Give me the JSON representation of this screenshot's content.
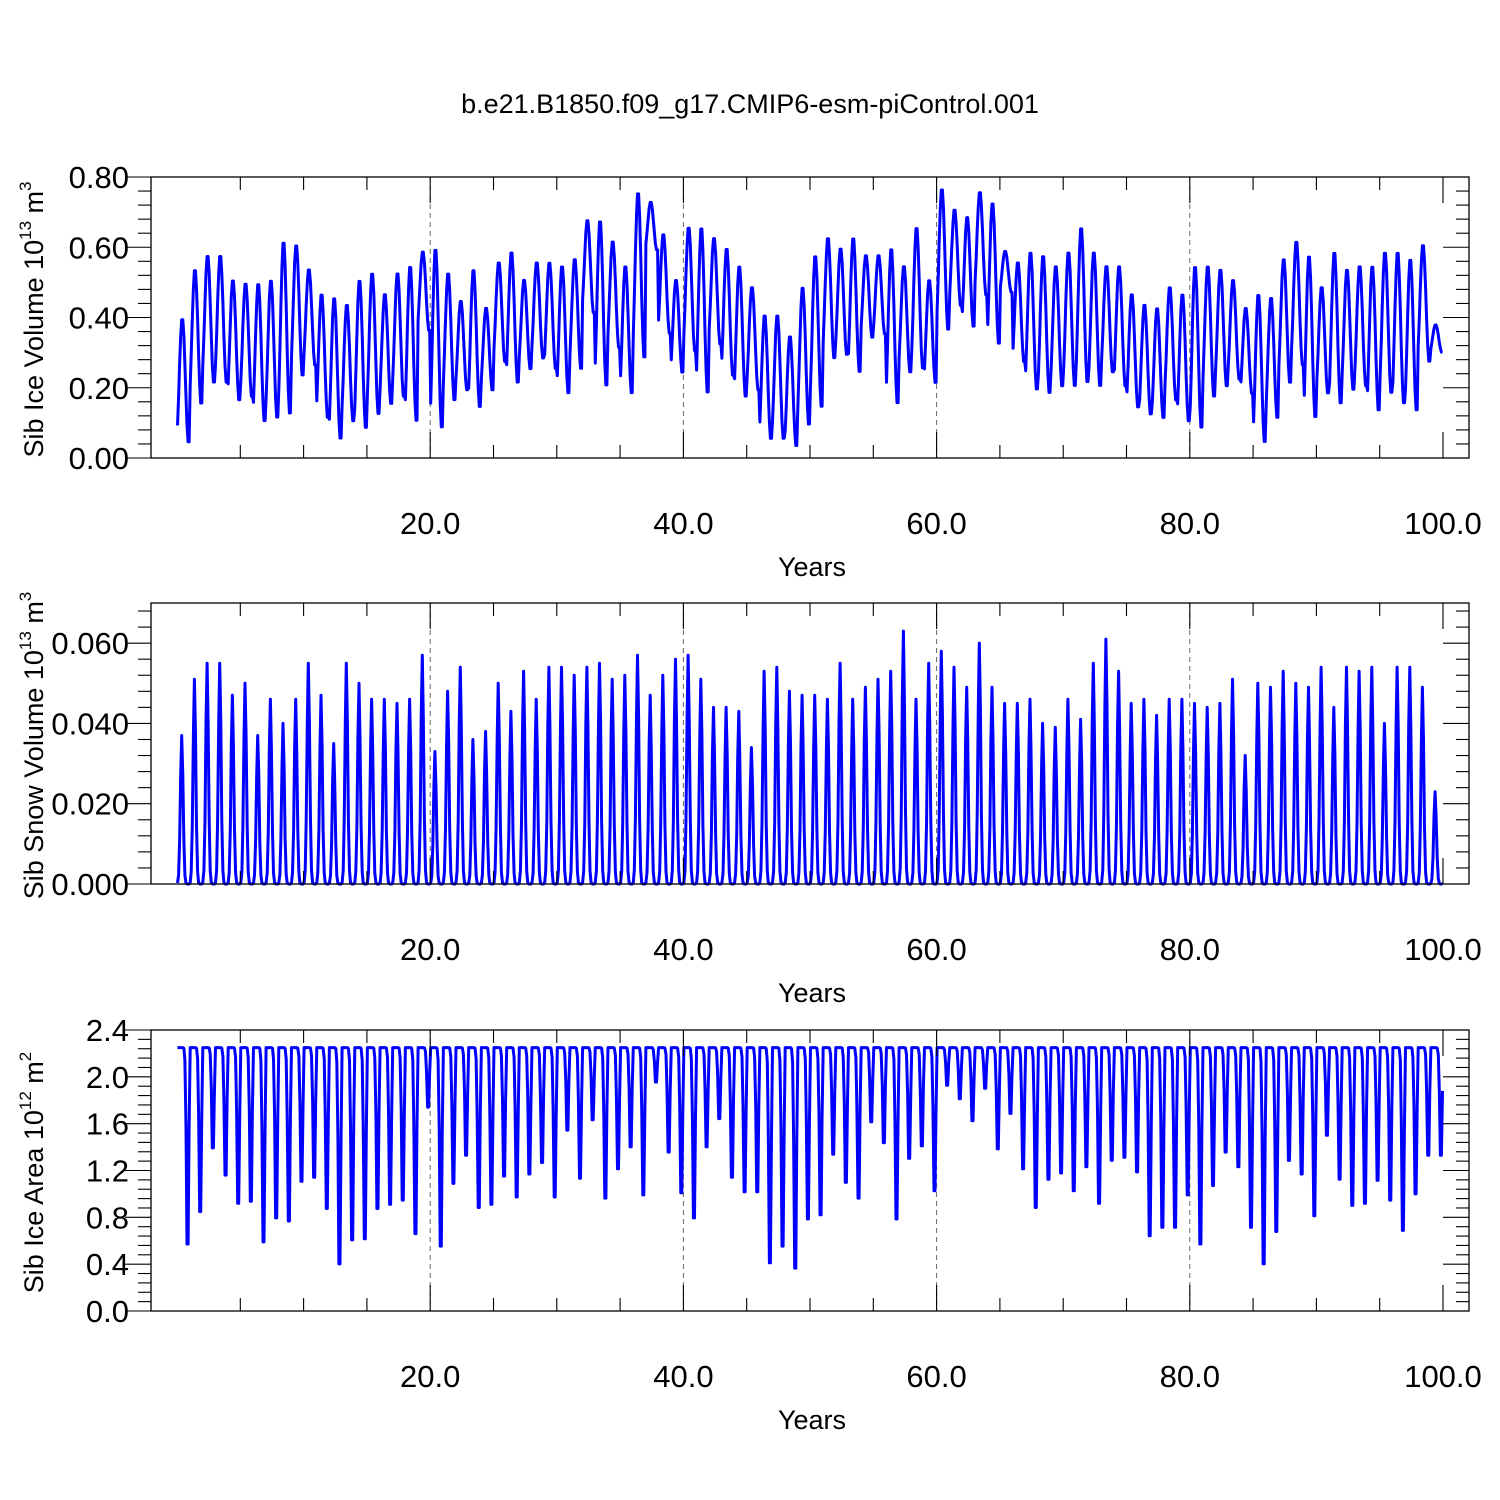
{
  "figure_title": "b.e21.B1850.f09_g17.CMIP6-esm-piControl.001",
  "chart_data": [
    {
      "type": "line",
      "title": "",
      "xlabel": "Years",
      "ylabel": "Sib Ice Volume 10",
      "ylabel_exp": "13",
      "ylabel_unit": " m",
      "ylabel_unit_exp": "3",
      "xlim": [
        0,
        100
      ],
      "ylim": [
        0.0,
        0.8
      ],
      "x_ticks": [
        20,
        40,
        60,
        80,
        100
      ],
      "x_tick_labels": [
        "20.0",
        "40.0",
        "60.0",
        "80.0",
        "100.0"
      ],
      "y_ticks": [
        0.0,
        0.2,
        0.4,
        0.6,
        0.8
      ],
      "y_tick_labels": [
        "0.00",
        "0.20",
        "0.40",
        "0.60",
        "0.80"
      ],
      "y_minor_step": 0.04,
      "x_minor_step": 5,
      "grid": "dashed vertical at x major ticks",
      "color": "#0000ff",
      "series": [
        {
          "annual_max": [
            0.4,
            0.54,
            0.58,
            0.58,
            0.51,
            0.5,
            0.5,
            0.51,
            0.62,
            0.61,
            0.54,
            0.47,
            0.46,
            0.44,
            0.51,
            0.53,
            0.47,
            0.53,
            0.55,
            0.59,
            0.6,
            0.53,
            0.45,
            0.54,
            0.43,
            0.56,
            0.59,
            0.51,
            0.56,
            0.56,
            0.55,
            0.57,
            0.68,
            0.68,
            0.62,
            0.55,
            0.76,
            0.73,
            0.64,
            0.51,
            0.66,
            0.66,
            0.63,
            0.6,
            0.55,
            0.49,
            0.41,
            0.41,
            0.35,
            0.49,
            0.58,
            0.63,
            0.6,
            0.63,
            0.58,
            0.58,
            0.6,
            0.55,
            0.66,
            0.51,
            0.77,
            0.71,
            0.69,
            0.76,
            0.73,
            0.59,
            0.56,
            0.59,
            0.58,
            0.55,
            0.59,
            0.66,
            0.59,
            0.55,
            0.55,
            0.47,
            0.44,
            0.43,
            0.49,
            0.47,
            0.55,
            0.55,
            0.54,
            0.51,
            0.43,
            0.47,
            0.46,
            0.57,
            0.62,
            0.58,
            0.49,
            0.59,
            0.54,
            0.55,
            0.55,
            0.59,
            0.59,
            0.57,
            0.61,
            0.38
          ],
          "annual_min": [
            0.04,
            0.15,
            0.21,
            0.21,
            0.16,
            0.17,
            0.1,
            0.11,
            0.12,
            0.23,
            0.26,
            0.11,
            0.05,
            0.1,
            0.08,
            0.12,
            0.15,
            0.17,
            0.1,
            0.36,
            0.08,
            0.16,
            0.19,
            0.14,
            0.19,
            0.27,
            0.21,
            0.25,
            0.28,
            0.25,
            0.18,
            0.25,
            0.41,
            0.2,
            0.31,
            0.18,
            0.28,
            0.59,
            0.35,
            0.24,
            0.3,
            0.18,
            0.32,
            0.23,
            0.17,
            0.19,
            0.05,
            0.05,
            0.03,
            0.09,
            0.14,
            0.28,
            0.29,
            0.24,
            0.34,
            0.35,
            0.15,
            0.24,
            0.25,
            0.21,
            0.36,
            0.43,
            0.37,
            0.46,
            0.32,
            0.47,
            0.27,
            0.19,
            0.18,
            0.2,
            0.2,
            0.21,
            0.2,
            0.24,
            0.2,
            0.14,
            0.12,
            0.11,
            0.16,
            0.1,
            0.08,
            0.17,
            0.2,
            0.22,
            0.18,
            0.04,
            0.11,
            0.21,
            0.26,
            0.11,
            0.18,
            0.15,
            0.19,
            0.2,
            0.13,
            0.18,
            0.15,
            0.13,
            0.27,
            0.3
          ]
        }
      ]
    },
    {
      "type": "line",
      "title": "",
      "xlabel": "Years",
      "ylabel": "Sib Snow Volume 10",
      "ylabel_exp": "13",
      "ylabel_unit": " m",
      "ylabel_unit_exp": "3",
      "xlim": [
        0,
        100
      ],
      "ylim": [
        0.0,
        0.07
      ],
      "x_ticks": [
        20,
        40,
        60,
        80,
        100
      ],
      "x_tick_labels": [
        "20.0",
        "40.0",
        "60.0",
        "80.0",
        "100.0"
      ],
      "y_ticks": [
        0.0,
        0.02,
        0.04,
        0.06
      ],
      "y_tick_labels": [
        "0.000",
        "0.020",
        "0.040",
        "0.060"
      ],
      "y_minor_step": 0.004,
      "x_minor_step": 5,
      "grid": "dashed vertical at x major ticks",
      "color": "#0000ff",
      "series": [
        {
          "annual_max": [
            0.037,
            0.051,
            0.055,
            0.055,
            0.047,
            0.05,
            0.037,
            0.046,
            0.04,
            0.046,
            0.055,
            0.047,
            0.035,
            0.055,
            0.05,
            0.046,
            0.046,
            0.045,
            0.046,
            0.057,
            0.033,
            0.048,
            0.054,
            0.036,
            0.038,
            0.05,
            0.043,
            0.053,
            0.046,
            0.054,
            0.054,
            0.052,
            0.054,
            0.055,
            0.051,
            0.052,
            0.057,
            0.047,
            0.052,
            0.056,
            0.057,
            0.051,
            0.044,
            0.044,
            0.043,
            0.034,
            0.053,
            0.054,
            0.048,
            0.047,
            0.047,
            0.046,
            0.055,
            0.046,
            0.049,
            0.051,
            0.053,
            0.063,
            0.046,
            0.055,
            0.058,
            0.054,
            0.049,
            0.06,
            0.049,
            0.045,
            0.045,
            0.046,
            0.04,
            0.039,
            0.046,
            0.041,
            0.055,
            0.061,
            0.053,
            0.045,
            0.046,
            0.042,
            0.046,
            0.046,
            0.045,
            0.044,
            0.045,
            0.051,
            0.032,
            0.05,
            0.049,
            0.053,
            0.05,
            0.049,
            0.054,
            0.044,
            0.054,
            0.053,
            0.054,
            0.04,
            0.054,
            0.054,
            0.049,
            0.023
          ],
          "annual_min": 0.0
        }
      ]
    },
    {
      "type": "line",
      "title": "",
      "xlabel": "Years",
      "ylabel": "Sib Ice Area 10",
      "ylabel_exp": "12",
      "ylabel_unit": " m",
      "ylabel_unit_exp": "2",
      "xlim": [
        0,
        100
      ],
      "ylim": [
        0.0,
        2.4
      ],
      "x_ticks": [
        20,
        40,
        60,
        80,
        100
      ],
      "x_tick_labels": [
        "20.0",
        "40.0",
        "60.0",
        "80.0",
        "100.0"
      ],
      "y_ticks": [
        0.0,
        0.4,
        0.8,
        1.2,
        1.6,
        2.0,
        2.4
      ],
      "y_tick_labels": [
        "0.0",
        "0.4",
        "0.8",
        "1.2",
        "1.6",
        "2.0",
        "2.4"
      ],
      "y_minor_step": 0.08,
      "x_minor_step": 5,
      "grid": "dashed vertical at x major ticks",
      "color": "#0000ff",
      "series": [
        {
          "annual_max": 2.25,
          "annual_min": [
            0.37,
            0.68,
            1.29,
            1.03,
            0.76,
            0.78,
            0.39,
            0.62,
            0.59,
            0.97,
            1.01,
            0.71,
            0.18,
            0.41,
            0.42,
            0.71,
            0.75,
            0.79,
            0.47,
            1.68,
            0.35,
            0.95,
            1.22,
            0.72,
            0.75,
            1.02,
            0.82,
            1.04,
            1.15,
            0.82,
            1.46,
            1.0,
            1.56,
            0.81,
            1.09,
            1.3,
            0.84,
            1.92,
            1.25,
            0.86,
            0.62,
            1.3,
            1.57,
            1.01,
            0.87,
            0.87,
            0.19,
            0.35,
            0.14,
            0.61,
            0.65,
            1.23,
            0.96,
            0.81,
            1.54,
            1.34,
            0.61,
            1.19,
            1.31,
            0.88,
            1.89,
            1.76,
            1.55,
            1.86,
            1.28,
            1.62,
            1.09,
            0.72,
            0.99,
            1.05,
            0.88,
            1.11,
            0.76,
            1.17,
            1.2,
            1.06,
            0.45,
            0.53,
            0.53,
            0.84,
            0.37,
            0.93,
            1.25,
            1.11,
            0.53,
            0.18,
            0.49,
            1.17,
            1.04,
            0.64,
            1.41,
            0.99,
            0.74,
            0.76,
            0.98,
            0.79,
            0.5,
            0.85,
            1.22,
            1.22
          ]
        }
      ]
    }
  ]
}
